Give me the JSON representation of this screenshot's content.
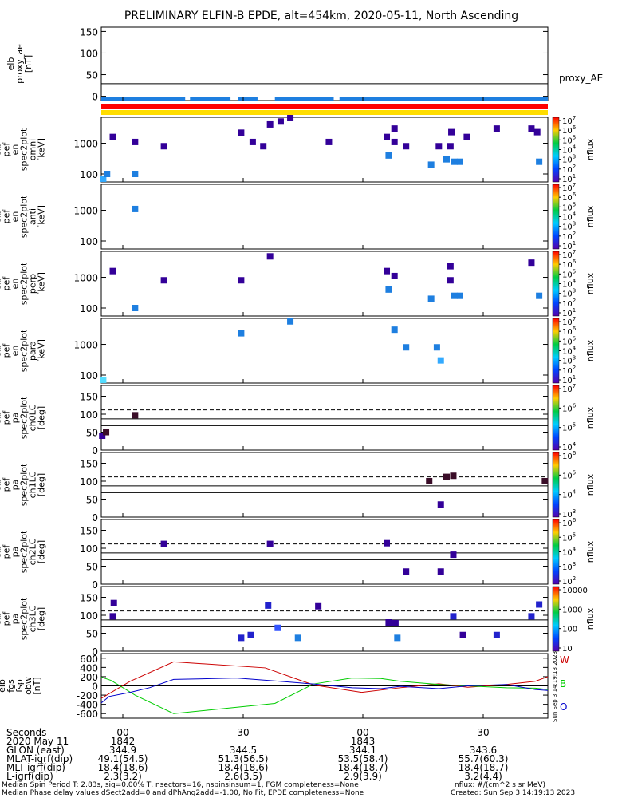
{
  "title": "PRELIMINARY ELFIN-B EPDE, alt=454km, 2020-05-11, North Ascending",
  "timestamp": "Sun Sep  3 14:19:13 2023",
  "colors": {
    "bar_blue": "#1e7fe0",
    "bar_red": "#ff0000",
    "bar_yellow": "#ffdd00",
    "trace_W": "#cc0000",
    "trace_B": "#00cc00",
    "trace_O": "#0000cc"
  },
  "chart_data": [
    {
      "type": "line",
      "panel": "proxy_ae",
      "ylabel": "proxy_ae [nT]",
      "ylim": [
        -10,
        160
      ],
      "yticks": [
        "150",
        "100",
        "50",
        "0"
      ],
      "legend": "proxy_AE",
      "series": [
        {
          "name": "proxy_AE",
          "x": [
            0,
            47
          ],
          "y": [
            29,
            29
          ]
        }
      ]
    },
    {
      "type": "heatmap",
      "panel": "pef_en_spec2plot_omni",
      "ylabel": "elb pef en spec2plot omni [keV]",
      "ylog": true,
      "ylim": [
        55,
        7000
      ],
      "yticks": [
        "1000",
        "100"
      ],
      "colorbar": {
        "label": "nflux",
        "ticks": [
          "10^7",
          "10^6",
          "10^5",
          "10^4",
          "10^3",
          "10^2",
          "10^1"
        ]
      },
      "points": [
        [
          0.2,
          70,
          2
        ],
        [
          0.6,
          100,
          3
        ],
        [
          1.2,
          1600,
          6
        ],
        [
          3.5,
          100,
          3
        ],
        [
          3.5,
          1100,
          6
        ],
        [
          6.5,
          800,
          6
        ],
        [
          14.5,
          2200,
          6
        ],
        [
          15.7,
          1100,
          6
        ],
        [
          16.8,
          800,
          6
        ],
        [
          17.5,
          4100,
          6
        ],
        [
          18.6,
          5100,
          6
        ],
        [
          19.6,
          6600,
          6
        ],
        [
          23.6,
          1100,
          6
        ],
        [
          29.6,
          1600,
          6
        ],
        [
          29.8,
          400,
          3
        ],
        [
          30.4,
          3000,
          6
        ],
        [
          30.4,
          1100,
          6
        ],
        [
          31.6,
          800,
          6
        ],
        [
          35.0,
          800,
          6
        ],
        [
          35.8,
          300,
          3
        ],
        [
          36.2,
          800,
          6
        ],
        [
          36.3,
          2300,
          6
        ],
        [
          36.6,
          250,
          3
        ],
        [
          37.2,
          250,
          3
        ],
        [
          37.9,
          1600,
          6
        ],
        [
          34.2,
          200,
          3
        ],
        [
          41.0,
          3000,
          6
        ],
        [
          44.6,
          3000,
          6
        ],
        [
          45.2,
          2300,
          6
        ],
        [
          45.4,
          250,
          3
        ]
      ]
    },
    {
      "type": "heatmap",
      "panel": "pef_en_spec2plot_anti",
      "ylabel": "elb pef en spec2plot anti [keV]",
      "ylog": true,
      "ylim": [
        55,
        7000
      ],
      "yticks": [
        "1000",
        "100"
      ],
      "colorbar": {
        "label": "nflux",
        "ticks": [
          "10^7",
          "10^6",
          "10^5",
          "10^4",
          "10^3",
          "10^2",
          "10^1"
        ]
      },
      "points": [
        [
          3.5,
          1100,
          3
        ]
      ]
    },
    {
      "type": "heatmap",
      "panel": "pef_en_spec2plot_perp",
      "ylabel": "elb pef en spec2plot perp [keV]",
      "ylog": true,
      "ylim": [
        55,
        7000
      ],
      "yticks": [
        "1000",
        "100"
      ],
      "colorbar": {
        "label": "nflux",
        "ticks": [
          "10^7",
          "10^6",
          "10^5",
          "10^4",
          "10^3",
          "10^2",
          "10^1"
        ]
      },
      "points": [
        [
          1.2,
          1600,
          6
        ],
        [
          3.5,
          100,
          3
        ],
        [
          6.5,
          800,
          6
        ],
        [
          14.5,
          800,
          6
        ],
        [
          17.5,
          4800,
          6
        ],
        [
          29.6,
          1600,
          6
        ],
        [
          29.8,
          400,
          3
        ],
        [
          30.4,
          1100,
          6
        ],
        [
          34.2,
          200,
          3
        ],
        [
          36.2,
          2300,
          6
        ],
        [
          36.2,
          800,
          6
        ],
        [
          36.6,
          250,
          3
        ],
        [
          37.2,
          250,
          3
        ],
        [
          44.6,
          3000,
          6
        ],
        [
          45.4,
          250,
          3
        ]
      ]
    },
    {
      "type": "heatmap",
      "panel": "pef_en_spec2plot_para",
      "ylabel": "elb pef en spec2plot para [keV]",
      "ylog": true,
      "ylim": [
        55,
        7000
      ],
      "yticks": [
        "1000",
        "100"
      ],
      "colorbar": {
        "label": "nflux",
        "ticks": [
          "10^7",
          "10^6",
          "10^5",
          "10^4",
          "10^3",
          "10^2",
          "10^1"
        ]
      },
      "points": [
        [
          0.2,
          70,
          1
        ],
        [
          14.5,
          2300,
          3
        ],
        [
          19.6,
          5600,
          3
        ],
        [
          30.4,
          3000,
          3
        ],
        [
          31.6,
          800,
          3
        ],
        [
          34.8,
          800,
          3
        ],
        [
          35.2,
          300,
          2
        ]
      ]
    },
    {
      "type": "heatmap",
      "panel": "pef_pa_spec2plot_ch0LC",
      "ylabel": "elb pef pa spec2plot ch0LC [deg]",
      "ylim": [
        0,
        180
      ],
      "yticks": [
        "150",
        "100",
        "50",
        "0"
      ],
      "colorbar": {
        "label": "nflux",
        "ticks": [
          "10^7",
          "10^6",
          "10^5",
          "10^4"
        ]
      },
      "reference_lines": {
        "dashed": 112,
        "solid": [
          87,
          68
        ]
      },
      "points": [
        [
          0.1,
          40,
          6
        ],
        [
          0.5,
          50,
          7
        ],
        [
          3.5,
          97,
          7
        ]
      ]
    },
    {
      "type": "heatmap",
      "panel": "pef_pa_spec2plot_ch1LC",
      "ylabel": "elb pef pa spec2plot ch1LC [deg]",
      "ylim": [
        0,
        180
      ],
      "yticks": [
        "150",
        "100",
        "50",
        "0"
      ],
      "colorbar": {
        "label": "nflux",
        "ticks": [
          "10^6",
          "10^5",
          "10^4",
          "10^3"
        ]
      },
      "reference_lines": {
        "dashed": 112,
        "solid": [
          87,
          68
        ]
      },
      "points": [
        [
          34.0,
          100,
          7
        ],
        [
          35.2,
          35,
          6
        ],
        [
          35.8,
          112,
          7
        ],
        [
          36.5,
          115,
          7
        ],
        [
          46.0,
          100,
          7
        ]
      ]
    },
    {
      "type": "heatmap",
      "panel": "pef_pa_spec2plot_ch2LC",
      "ylabel": "elb pef pa spec2plot ch2LC [deg]",
      "ylim": [
        0,
        180
      ],
      "yticks": [
        "150",
        "100",
        "50",
        "0"
      ],
      "colorbar": {
        "label": "nflux",
        "ticks": [
          "10^6",
          "10^5",
          "10^4",
          "10^3",
          "10^2"
        ]
      },
      "reference_lines": {
        "dashed": 112,
        "solid": [
          87,
          68
        ]
      },
      "points": [
        [
          6.5,
          112,
          6
        ],
        [
          17.5,
          112,
          6
        ],
        [
          29.6,
          114,
          6
        ],
        [
          31.6,
          35,
          6
        ],
        [
          35.2,
          35,
          6
        ],
        [
          36.5,
          82,
          6
        ]
      ]
    },
    {
      "type": "heatmap",
      "panel": "pef_pa_spec2plot_ch3LC",
      "ylabel": "elb pef pa spec2plot ch3LC [deg]",
      "ylim": [
        0,
        180
      ],
      "yticks": [
        "150",
        "100",
        "50",
        "0"
      ],
      "colorbar": {
        "label": "nflux",
        "ticks": [
          "10000",
          "1000",
          "100",
          "10"
        ]
      },
      "reference_lines": {
        "dashed": 112,
        "solid": [
          87,
          68
        ]
      },
      "points": [
        [
          1.2,
          97,
          6
        ],
        [
          1.3,
          134,
          6
        ],
        [
          14.5,
          37,
          5
        ],
        [
          15.5,
          45,
          5
        ],
        [
          17.3,
          127,
          5
        ],
        [
          18.3,
          65,
          4
        ],
        [
          20.4,
          37,
          3
        ],
        [
          22.5,
          125,
          6
        ],
        [
          29.8,
          80,
          6
        ],
        [
          30.5,
          78,
          6
        ],
        [
          30.7,
          37,
          3
        ],
        [
          36.5,
          97,
          5
        ],
        [
          37.5,
          45,
          6
        ],
        [
          41.0,
          45,
          5
        ],
        [
          44.6,
          97,
          5
        ],
        [
          45.4,
          130,
          5
        ]
      ]
    },
    {
      "type": "line",
      "panel": "fgs_fsp_obw",
      "ylabel": "elb fgs fsp obw [nT]",
      "ylim": [
        -700,
        700
      ],
      "yticks": [
        "600",
        "400",
        "200",
        "0",
        "-200",
        "-400",
        "-600"
      ],
      "series": [
        {
          "name": "W",
          "color": "#cc0000",
          "x": [
            0,
            3,
            7.5,
            17,
            22,
            27,
            31,
            35,
            38,
            42,
            45,
            46.3
          ],
          "y": [
            -270,
            100,
            520,
            390,
            20,
            -140,
            -40,
            45,
            -30,
            30,
            100,
            200
          ]
        },
        {
          "name": "B",
          "color": "#00cc00",
          "x": [
            0,
            1,
            3.5,
            7.5,
            18,
            22,
            26,
            29,
            31,
            35,
            42,
            45,
            46.3
          ],
          "y": [
            190,
            120,
            -200,
            -600,
            -380,
            40,
            170,
            160,
            100,
            30,
            -40,
            -50,
            -80
          ]
        },
        {
          "name": "O",
          "color": "#0000cc",
          "x": [
            0,
            0.8,
            3,
            5,
            7.5,
            14,
            18.5,
            22,
            26,
            29,
            31,
            35,
            38,
            42,
            45,
            46.3
          ],
          "y": [
            -370,
            -230,
            -140,
            -40,
            140,
            170,
            100,
            40,
            -40,
            -60,
            -10,
            -60,
            0,
            30,
            -80,
            -100
          ]
        }
      ]
    }
  ],
  "x_axis": {
    "ticks": [
      {
        "label": "00",
        "minute": 0
      },
      {
        "label": "30",
        "minute": 0.5
      },
      {
        "label": "00",
        "minute": 1
      },
      {
        "label": "30",
        "minute": 1.5
      }
    ],
    "rows": [
      {
        "label": "Seconds",
        "values": [
          "00",
          "30",
          "00",
          "30"
        ]
      },
      {
        "label": "2020 May 11",
        "values": [
          "1842",
          "",
          "1843",
          ""
        ]
      },
      {
        "label": "GLON (east)",
        "values": [
          "344.9",
          "344.5",
          "344.1",
          "343.6"
        ]
      },
      {
        "label": "MLAT-igrf(dip)",
        "values": [
          "49.1(54.5)",
          "51.3(56.5)",
          "53.5(58.4)",
          "55.7(60.3)"
        ]
      },
      {
        "label": "MLT-igrf(dip)",
        "values": [
          "18.4(18.6)",
          "18.4(18.6)",
          "18.4(18.7)",
          "18.4(18.7)"
        ]
      },
      {
        "label": "L-igrf(dip)",
        "values": [
          "2.3(3.2)",
          "2.6(3.5)",
          "2.9(3.9)",
          "3.2(4.4)"
        ]
      }
    ]
  },
  "footer": {
    "line1": "Median Spin Period T: 2.83s, sig=0.00% T, nsectors=16, nspinsinsum=1, FGM completeness=None",
    "line2": "Median Phase delay values dSect2add=0 and dPhAng2add=-1.00, No Fit, EPDE completeness=None",
    "units": "nflux: #/(cm^2 s sr MeV)",
    "created": "Created: Sun Sep  3 14:19:13 2023"
  }
}
